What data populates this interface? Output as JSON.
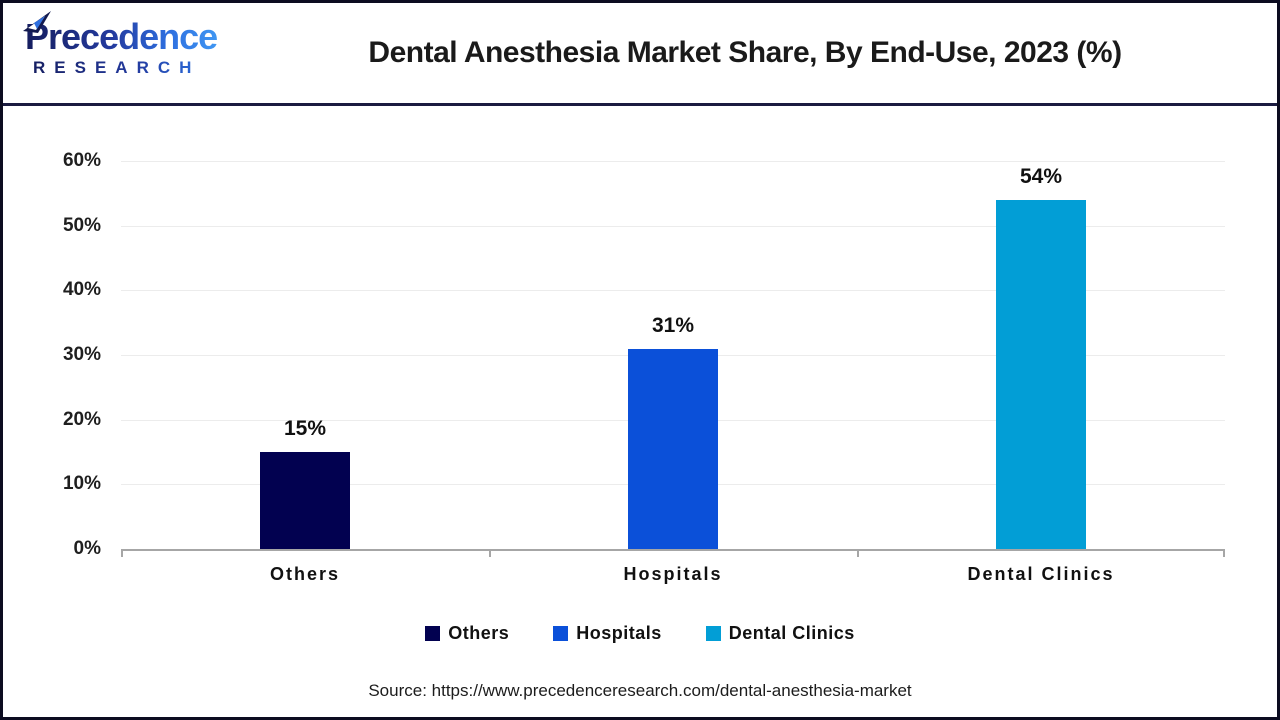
{
  "header": {
    "logo": {
      "brand": "Precedence",
      "sub": "RESEARCH"
    },
    "title": "Dental Anesthesia Market Share, By End-Use, 2023 (%)"
  },
  "chart_data": {
    "type": "bar",
    "title": "Dental Anesthesia Market Share, By End-Use, 2023 (%)",
    "categories": [
      "Others",
      "Hospitals",
      "Dental Clinics"
    ],
    "values": [
      15,
      31,
      54
    ],
    "data_labels": [
      "15%",
      "31%",
      "54%"
    ],
    "bar_colors": [
      "#020150",
      "#0b50d9",
      "#029ed6"
    ],
    "xlabel": "",
    "ylabel": "",
    "ylim": [
      0,
      60
    ],
    "ytick_step": 10,
    "ytick_labels": [
      "0%",
      "10%",
      "20%",
      "30%",
      "40%",
      "50%",
      "60%"
    ],
    "grid": "horizontal",
    "legend_position": "bottom",
    "legend": [
      {
        "label": "Others",
        "color": "#020150"
      },
      {
        "label": "Hospitals",
        "color": "#0b50d9"
      },
      {
        "label": "Dental Clinics",
        "color": "#029ed6"
      }
    ]
  },
  "footer": {
    "source": "Source: https://www.precedenceresearch.com/dental-anesthesia-market"
  },
  "colors": {
    "page_border": "#0c0c20",
    "header_divider": "#1b1b40",
    "baseline": "#a6a6a6",
    "gridline": "#ececec",
    "title_text": "#1a1a1a"
  }
}
